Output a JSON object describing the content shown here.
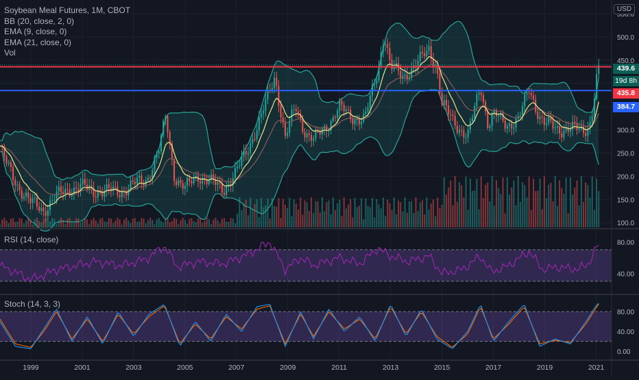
{
  "legend": {
    "title": "Soybean Meal Futures, 1M, CBOT",
    "bb": "BB (20, close, 2, 0)",
    "ema9": "EMA (9, close, 0)",
    "ema21": "EMA (21, close, 0)",
    "vol": "Vol"
  },
  "currency": "USD",
  "price_tags": {
    "last": "439.6",
    "countdown": "19d 8h",
    "red_line": "435.8",
    "blue_line": "384.7"
  },
  "rsi_label": "RSI (14, close)",
  "stoch_label": "Stoch (14, 3, 3)",
  "colors": {
    "background": "#131722",
    "up": "#26a69a",
    "down": "#ef5350",
    "ema9": "#f0e68c",
    "ema21": "#8b5a5a",
    "bb": "#26a69a",
    "red_line": "#f23645",
    "blue_line": "#2962ff",
    "rsi": "#9c27b0",
    "stoch_k": "#2196f3",
    "stoch_d": "#ff6d00",
    "band_fill": "#7e57c2"
  },
  "chart_data": [
    {
      "type": "candlestick",
      "title": "Soybean Meal Futures, 1M, CBOT",
      "x_tick_labels": [
        "1999",
        "2001",
        "2003",
        "2005",
        "2007",
        "2009",
        "2011",
        "2013",
        "2015",
        "2017",
        "2019",
        "2021"
      ],
      "x_ticks": [
        1999,
        2001,
        2003,
        2005,
        2007,
        2009,
        2011,
        2013,
        2015,
        2017,
        2019,
        2021
      ],
      "x_range": [
        1997.8,
        2021.6
      ],
      "y_tick_labels": [
        "100.0",
        "150.0",
        "200.0",
        "250.0",
        "300.0",
        "350.0",
        "400.0",
        "450.0",
        "500.0",
        "550.0"
      ],
      "y_ticks": [
        100,
        150,
        200,
        250,
        300,
        350,
        400,
        450,
        500,
        550
      ],
      "y_range": [
        90,
        565
      ],
      "horizontal_lines": [
        {
          "value": 435.8,
          "color": "#f23645"
        },
        {
          "value": 384.7,
          "color": "#2962ff"
        }
      ],
      "last_price": 439.6,
      "close_series": {
        "x": [
          1997.8,
          1998.0,
          1998.3,
          1998.7,
          1999.0,
          1999.5,
          2000.0,
          2000.5,
          2001.0,
          2001.5,
          2002.0,
          2002.5,
          2003.0,
          2003.5,
          2004.0,
          2004.25,
          2004.6,
          2005.0,
          2005.5,
          2006.0,
          2006.5,
          2007.0,
          2007.5,
          2008.0,
          2008.5,
          2008.9,
          2009.3,
          2009.7,
          2010.0,
          2010.5,
          2011.0,
          2011.5,
          2012.0,
          2012.5,
          2012.75,
          2013.0,
          2013.5,
          2014.0,
          2014.5,
          2014.8,
          2015.0,
          2015.5,
          2016.0,
          2016.5,
          2016.8,
          2017.0,
          2017.5,
          2018.0,
          2018.4,
          2018.8,
          2019.0,
          2019.5,
          2020.0,
          2020.5,
          2020.8,
          2021.0,
          2021.1
        ],
        "values": [
          265,
          230,
          200,
          165,
          140,
          130,
          155,
          175,
          175,
          170,
          165,
          170,
          180,
          195,
          255,
          330,
          200,
          170,
          205,
          185,
          175,
          205,
          270,
          330,
          420,
          280,
          350,
          295,
          275,
          310,
          345,
          330,
          320,
          430,
          510,
          430,
          420,
          435,
          480,
          430,
          350,
          320,
          280,
          400,
          310,
          330,
          315,
          320,
          390,
          330,
          310,
          305,
          300,
          300,
          320,
          400,
          439.6
        ]
      },
      "volume_bar_count": 276
    },
    {
      "type": "line",
      "title": "RSI (14, close)",
      "y_tick_labels": [
        "40.00",
        "80.00"
      ],
      "y_ticks": [
        40,
        80
      ],
      "bands": [
        30,
        70
      ],
      "x": [
        1997.8,
        1998.5,
        1999.0,
        1999.5,
        2000.0,
        2000.5,
        2001.5,
        2002.5,
        2003.5,
        2004.2,
        2004.7,
        2005.5,
        2006.5,
        2007.5,
        2008.3,
        2008.9,
        2009.5,
        2010.0,
        2011.0,
        2011.8,
        2012.5,
        2013.0,
        2013.7,
        2014.5,
        2015.0,
        2015.8,
        2016.5,
        2016.9,
        2017.5,
        2018.4,
        2018.9,
        2019.5,
        2020.3,
        2020.7,
        2021.0,
        2021.1
      ],
      "values": [
        50,
        40,
        32,
        38,
        45,
        48,
        55,
        50,
        58,
        75,
        48,
        55,
        52,
        65,
        80,
        45,
        60,
        50,
        60,
        52,
        72,
        62,
        55,
        62,
        40,
        45,
        62,
        42,
        48,
        68,
        45,
        48,
        45,
        52,
        72,
        76
      ]
    },
    {
      "type": "line",
      "title": "Stoch (14, 3, 3)",
      "y_tick_labels": [
        "0.00",
        "40.00",
        "80.00"
      ],
      "y_ticks": [
        0,
        40,
        80
      ],
      "bands": [
        20,
        80
      ],
      "series": [
        {
          "x": [
            1997.8,
            1998.4,
            1999.0,
            1999.5,
            2000.0,
            2000.6,
            2001.2,
            2001.8,
            2002.4,
            2003.0,
            2003.6,
            2004.2,
            2004.8,
            2005.4,
            2006.0,
            2006.6,
            2007.2,
            2007.8,
            2008.3,
            2008.9,
            2009.5,
            2010.0,
            2010.6,
            2011.2,
            2011.8,
            2012.4,
            2013.0,
            2013.6,
            2014.2,
            2014.8,
            2015.4,
            2016.0,
            2016.5,
            2017.0,
            2017.6,
            2018.2,
            2018.8,
            2019.4,
            2020.0,
            2020.6,
            2021.0,
            2021.1
          ],
          "values": [
            60,
            10,
            5,
            45,
            85,
            20,
            70,
            15,
            80,
            30,
            75,
            95,
            10,
            60,
            20,
            75,
            40,
            90,
            95,
            10,
            80,
            25,
            85,
            40,
            70,
            20,
            95,
            30,
            85,
            25,
            5,
            40,
            95,
            20,
            60,
            95,
            10,
            25,
            15,
            60,
            92,
            97
          ]
        },
        {
          "x": [
            1997.8,
            1998.4,
            1999.0,
            1999.5,
            2000.0,
            2000.6,
            2001.2,
            2001.8,
            2002.4,
            2003.0,
            2003.6,
            2004.2,
            2004.8,
            2005.4,
            2006.0,
            2006.6,
            2007.2,
            2007.8,
            2008.3,
            2008.9,
            2009.5,
            2010.0,
            2010.6,
            2011.2,
            2011.8,
            2012.4,
            2013.0,
            2013.6,
            2014.2,
            2014.8,
            2015.4,
            2016.0,
            2016.5,
            2017.0,
            2017.6,
            2018.2,
            2018.8,
            2019.4,
            2020.0,
            2020.6,
            2021.0,
            2021.1
          ],
          "values": [
            65,
            15,
            8,
            40,
            80,
            25,
            65,
            20,
            75,
            35,
            70,
            92,
            15,
            55,
            25,
            70,
            45,
            85,
            92,
            15,
            75,
            30,
            80,
            45,
            65,
            25,
            90,
            35,
            80,
            30,
            8,
            35,
            90,
            25,
            55,
            90,
            15,
            22,
            18,
            55,
            88,
            95
          ]
        }
      ]
    }
  ]
}
